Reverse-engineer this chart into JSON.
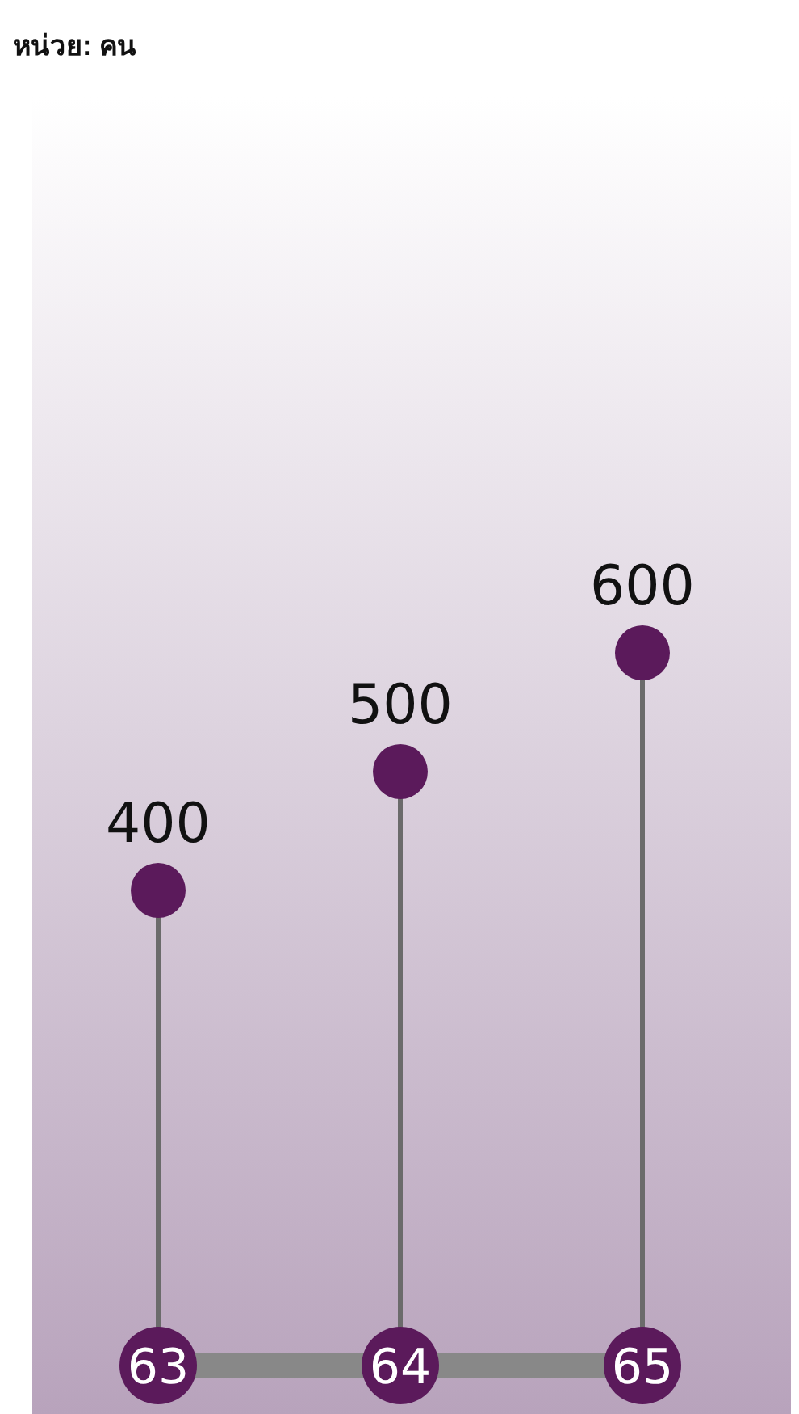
{
  "chart_data": {
    "type": "lollipop",
    "title": "หน่วย: คน",
    "categories": [
      "63",
      "64",
      "65"
    ],
    "values": [
      400,
      500,
      600
    ],
    "color": "#5b1a5b",
    "data_labels": true
  }
}
